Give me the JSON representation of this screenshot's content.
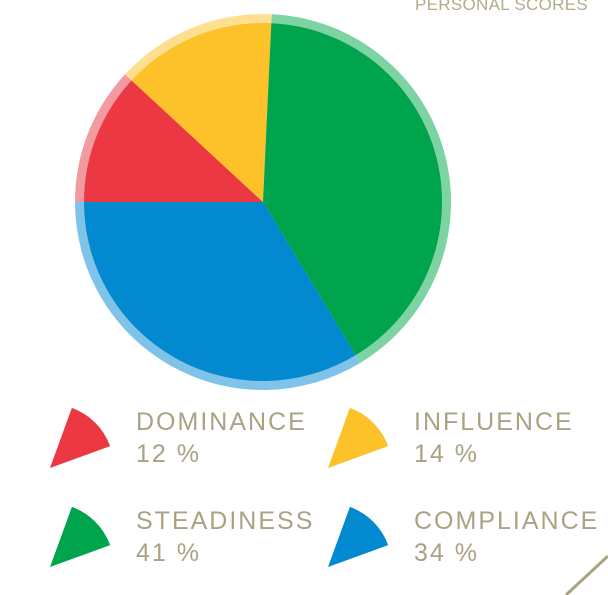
{
  "header": {
    "title": "PERSONAL SCORES"
  },
  "chart_data": {
    "type": "pie",
    "title": "PERSONAL SCORES",
    "slices": [
      {
        "name": "DOMINANCE",
        "value": 12,
        "label": "12 %",
        "color": "#ec3843",
        "rim_color": "#f19ba0"
      },
      {
        "name": "INFLUENCE",
        "value": 14,
        "label": "14 %",
        "color": "#fdc12a",
        "rim_color": "#fde08f"
      },
      {
        "name": "STEADINESS",
        "value": 41,
        "label": "41 %",
        "color": "#00a44c",
        "rim_color": "#7dd3a2"
      },
      {
        "name": "COMPLIANCE",
        "value": 34,
        "label": "34 %",
        "color": "#0289d0",
        "rim_color": "#7fc3e8"
      }
    ],
    "legend_placement": "bottom"
  },
  "legend": {
    "items": [
      {
        "name": "DOMINANCE",
        "value": "12 %",
        "color": "#ec3843"
      },
      {
        "name": "INFLUENCE",
        "value": "14 %",
        "color": "#fdc12a"
      },
      {
        "name": "STEADINESS",
        "value": "41 %",
        "color": "#00a44c"
      },
      {
        "name": "COMPLIANCE",
        "value": "34 %",
        "color": "#0289d0"
      }
    ]
  },
  "decoration": {
    "line_color": "#a9a283"
  }
}
